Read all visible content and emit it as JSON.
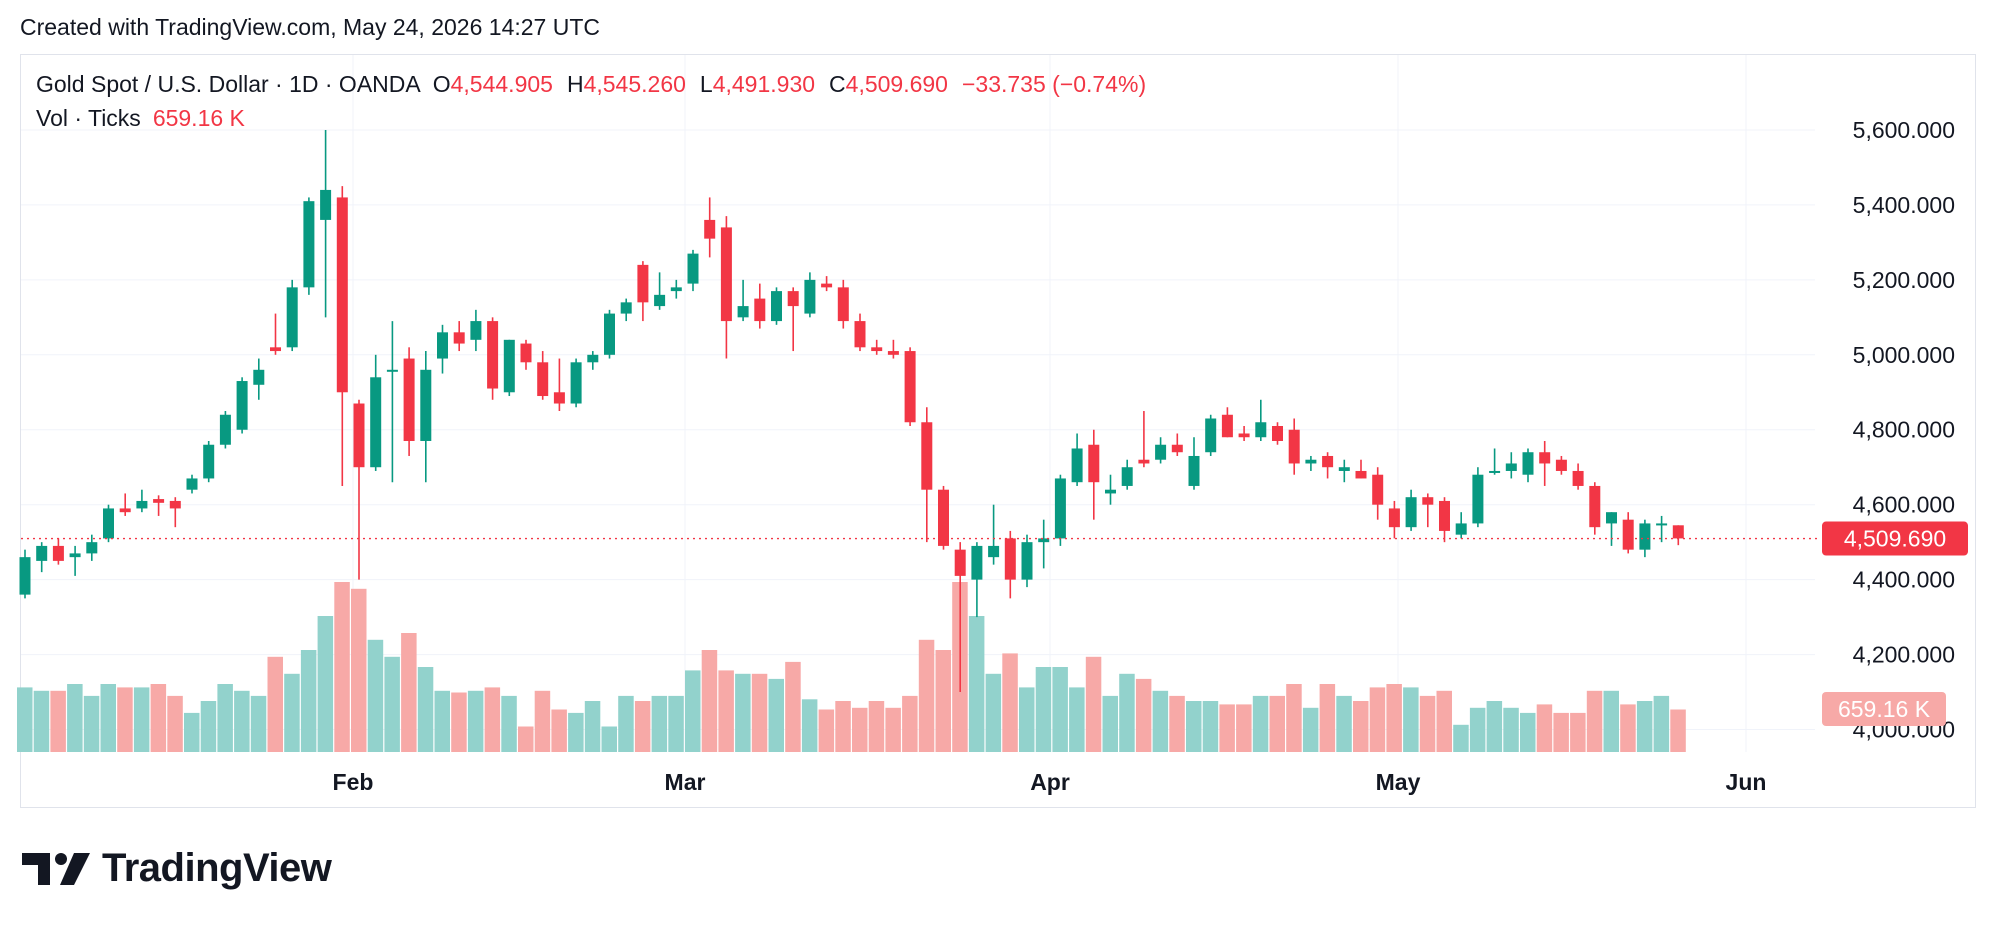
{
  "header": {
    "created": "Created with TradingView.com, May 24, 2026 14:27 UTC"
  },
  "legend": {
    "symbol": "Gold Spot / U.S. Dollar · 1D · OANDA",
    "o_label": "O",
    "o": "4,544.905",
    "h_label": "H",
    "h": "4,545.260",
    "l_label": "L",
    "l": "4,491.930",
    "c_label": "C",
    "c": "4,509.690",
    "change": "−33.735 (−0.74%)"
  },
  "volume": {
    "label": "Vol · Ticks",
    "value": "659.16 K"
  },
  "footer": {
    "brand": "TradingView"
  },
  "colors": {
    "up": "#089981",
    "down": "#f23645",
    "vol_up": "#92d2cc",
    "vol_down": "#f7a9a7",
    "grid": "#f0f3fa",
    "text": "#131722"
  },
  "chart_data": {
    "type": "candlestick",
    "title": "Gold Spot / U.S. Dollar · 1D · OANDA",
    "x_ticks": [
      "Feb",
      "Mar",
      "Apr",
      "May",
      "Jun"
    ],
    "y_ticks": [
      "5,600.000",
      "5,400.000",
      "5,200.000",
      "5,000.000",
      "4,800.000",
      "4,600.000",
      "4,400.000",
      "4,200.000",
      "4,000.000"
    ],
    "y_tick_values": [
      5600,
      5400,
      5200,
      5000,
      4800,
      4600,
      4400,
      4200,
      4000
    ],
    "ylim": [
      3940,
      5680
    ],
    "last_price": 4509.69,
    "last_price_label": "4,509.690",
    "last_volume_label": "659.16 K",
    "grid": true,
    "candles": [
      {
        "o": 4360,
        "h": 4480,
        "l": 4350,
        "c": 4460,
        "v": 0.38
      },
      {
        "o": 4450,
        "h": 4500,
        "l": 4420,
        "c": 4490,
        "v": 0.36
      },
      {
        "o": 4490,
        "h": 4510,
        "l": 4440,
        "c": 4450,
        "v": 0.36
      },
      {
        "o": 4460,
        "h": 4490,
        "l": 4410,
        "c": 4470,
        "v": 0.4
      },
      {
        "o": 4470,
        "h": 4520,
        "l": 4450,
        "c": 4500,
        "v": 0.33
      },
      {
        "o": 4510,
        "h": 4600,
        "l": 4500,
        "c": 4590,
        "v": 0.4
      },
      {
        "o": 4590,
        "h": 4630,
        "l": 4570,
        "c": 4580,
        "v": 0.38
      },
      {
        "o": 4590,
        "h": 4640,
        "l": 4580,
        "c": 4610,
        "v": 0.38
      },
      {
        "o": 4615,
        "h": 4625,
        "l": 4570,
        "c": 4605,
        "v": 0.4
      },
      {
        "o": 4610,
        "h": 4620,
        "l": 4540,
        "c": 4590,
        "v": 0.33
      },
      {
        "o": 4640,
        "h": 4680,
        "l": 4630,
        "c": 4670,
        "v": 0.23
      },
      {
        "o": 4670,
        "h": 4770,
        "l": 4660,
        "c": 4760,
        "v": 0.3
      },
      {
        "o": 4760,
        "h": 4850,
        "l": 4750,
        "c": 4840,
        "v": 0.4
      },
      {
        "o": 4800,
        "h": 4940,
        "l": 4790,
        "c": 4930,
        "v": 0.36
      },
      {
        "o": 4920,
        "h": 4990,
        "l": 4880,
        "c": 4960,
        "v": 0.33
      },
      {
        "o": 5020,
        "h": 5110,
        "l": 5000,
        "c": 5010,
        "v": 0.56
      },
      {
        "o": 5020,
        "h": 5200,
        "l": 5010,
        "c": 5180,
        "v": 0.46
      },
      {
        "o": 5180,
        "h": 5420,
        "l": 5160,
        "c": 5410,
        "v": 0.6
      },
      {
        "o": 5360,
        "h": 5600,
        "l": 5100,
        "c": 5440,
        "v": 0.8
      },
      {
        "o": 5420,
        "h": 5450,
        "l": 4650,
        "c": 4900,
        "v": 1.0
      },
      {
        "o": 4870,
        "h": 4880,
        "l": 4400,
        "c": 4700,
        "v": 0.96
      },
      {
        "o": 4700,
        "h": 5000,
        "l": 4690,
        "c": 4940,
        "v": 0.66
      },
      {
        "o": 4960,
        "h": 5090,
        "l": 4660,
        "c": 4960,
        "v": 0.56
      },
      {
        "o": 4990,
        "h": 5020,
        "l": 4730,
        "c": 4770,
        "v": 0.7
      },
      {
        "o": 4770,
        "h": 5010,
        "l": 4660,
        "c": 4960,
        "v": 0.5
      },
      {
        "o": 4990,
        "h": 5080,
        "l": 4950,
        "c": 5060,
        "v": 0.36
      },
      {
        "o": 5060,
        "h": 5090,
        "l": 5010,
        "c": 5030,
        "v": 0.35
      },
      {
        "o": 5040,
        "h": 5120,
        "l": 5010,
        "c": 5090,
        "v": 0.36
      },
      {
        "o": 5090,
        "h": 5100,
        "l": 4880,
        "c": 4910,
        "v": 0.38
      },
      {
        "o": 4900,
        "h": 5040,
        "l": 4890,
        "c": 5040,
        "v": 0.33
      },
      {
        "o": 5030,
        "h": 5040,
        "l": 4960,
        "c": 4980,
        "v": 0.15
      },
      {
        "o": 4980,
        "h": 5010,
        "l": 4880,
        "c": 4890,
        "v": 0.36
      },
      {
        "o": 4900,
        "h": 4990,
        "l": 4850,
        "c": 4870,
        "v": 0.25
      },
      {
        "o": 4870,
        "h": 4990,
        "l": 4860,
        "c": 4980,
        "v": 0.23
      },
      {
        "o": 4980,
        "h": 5010,
        "l": 4960,
        "c": 5000,
        "v": 0.3
      },
      {
        "o": 5000,
        "h": 5120,
        "l": 4990,
        "c": 5110,
        "v": 0.15
      },
      {
        "o": 5110,
        "h": 5150,
        "l": 5090,
        "c": 5140,
        "v": 0.33
      },
      {
        "o": 5240,
        "h": 5250,
        "l": 5090,
        "c": 5140,
        "v": 0.3
      },
      {
        "o": 5130,
        "h": 5220,
        "l": 5120,
        "c": 5160,
        "v": 0.33
      },
      {
        "o": 5170,
        "h": 5200,
        "l": 5150,
        "c": 5180,
        "v": 0.33
      },
      {
        "o": 5190,
        "h": 5280,
        "l": 5170,
        "c": 5270,
        "v": 0.48
      },
      {
        "o": 5360,
        "h": 5420,
        "l": 5260,
        "c": 5310,
        "v": 0.6
      },
      {
        "o": 5340,
        "h": 5370,
        "l": 4990,
        "c": 5090,
        "v": 0.48
      },
      {
        "o": 5100,
        "h": 5200,
        "l": 5090,
        "c": 5130,
        "v": 0.46
      },
      {
        "o": 5150,
        "h": 5190,
        "l": 5070,
        "c": 5090,
        "v": 0.46
      },
      {
        "o": 5090,
        "h": 5180,
        "l": 5080,
        "c": 5170,
        "v": 0.43
      },
      {
        "o": 5170,
        "h": 5180,
        "l": 5010,
        "c": 5130,
        "v": 0.53
      },
      {
        "o": 5110,
        "h": 5220,
        "l": 5100,
        "c": 5200,
        "v": 0.31
      },
      {
        "o": 5190,
        "h": 5210,
        "l": 5170,
        "c": 5180,
        "v": 0.25
      },
      {
        "o": 5180,
        "h": 5200,
        "l": 5070,
        "c": 5090,
        "v": 0.3
      },
      {
        "o": 5090,
        "h": 5110,
        "l": 5010,
        "c": 5020,
        "v": 0.26
      },
      {
        "o": 5020,
        "h": 5040,
        "l": 5000,
        "c": 5010,
        "v": 0.3
      },
      {
        "o": 5010,
        "h": 5040,
        "l": 4990,
        "c": 5000,
        "v": 0.26
      },
      {
        "o": 5010,
        "h": 5020,
        "l": 4810,
        "c": 4820,
        "v": 0.33
      },
      {
        "o": 4820,
        "h": 4860,
        "l": 4500,
        "c": 4640,
        "v": 0.66
      },
      {
        "o": 4640,
        "h": 4650,
        "l": 4480,
        "c": 4490,
        "v": 0.6
      },
      {
        "o": 4480,
        "h": 4500,
        "l": 4100,
        "c": 4410,
        "v": 1.0
      },
      {
        "o": 4400,
        "h": 4500,
        "l": 4300,
        "c": 4490,
        "v": 0.8
      },
      {
        "o": 4460,
        "h": 4600,
        "l": 4440,
        "c": 4490,
        "v": 0.46
      },
      {
        "o": 4510,
        "h": 4530,
        "l": 4350,
        "c": 4400,
        "v": 0.58
      },
      {
        "o": 4400,
        "h": 4520,
        "l": 4380,
        "c": 4500,
        "v": 0.38
      },
      {
        "o": 4500,
        "h": 4560,
        "l": 4430,
        "c": 4510,
        "v": 0.5
      },
      {
        "o": 4510,
        "h": 4680,
        "l": 4490,
        "c": 4670,
        "v": 0.5
      },
      {
        "o": 4660,
        "h": 4790,
        "l": 4650,
        "c": 4750,
        "v": 0.38
      },
      {
        "o": 4760,
        "h": 4800,
        "l": 4560,
        "c": 4660,
        "v": 0.56
      },
      {
        "o": 4630,
        "h": 4680,
        "l": 4600,
        "c": 4640,
        "v": 0.33
      },
      {
        "o": 4650,
        "h": 4720,
        "l": 4640,
        "c": 4700,
        "v": 0.46
      },
      {
        "o": 4720,
        "h": 4850,
        "l": 4700,
        "c": 4710,
        "v": 0.43
      },
      {
        "o": 4720,
        "h": 4780,
        "l": 4710,
        "c": 4760,
        "v": 0.36
      },
      {
        "o": 4760,
        "h": 4790,
        "l": 4730,
        "c": 4740,
        "v": 0.33
      },
      {
        "o": 4650,
        "h": 4780,
        "l": 4640,
        "c": 4730,
        "v": 0.3
      },
      {
        "o": 4740,
        "h": 4840,
        "l": 4730,
        "c": 4830,
        "v": 0.3
      },
      {
        "o": 4840,
        "h": 4860,
        "l": 4780,
        "c": 4780,
        "v": 0.28
      },
      {
        "o": 4790,
        "h": 4810,
        "l": 4770,
        "c": 4780,
        "v": 0.28
      },
      {
        "o": 4780,
        "h": 4880,
        "l": 4770,
        "c": 4820,
        "v": 0.33
      },
      {
        "o": 4810,
        "h": 4820,
        "l": 4760,
        "c": 4770,
        "v": 0.33
      },
      {
        "o": 4800,
        "h": 4830,
        "l": 4680,
        "c": 4710,
        "v": 0.4
      },
      {
        "o": 4710,
        "h": 4730,
        "l": 4690,
        "c": 4720,
        "v": 0.26
      },
      {
        "o": 4730,
        "h": 4740,
        "l": 4670,
        "c": 4700,
        "v": 0.4
      },
      {
        "o": 4690,
        "h": 4720,
        "l": 4660,
        "c": 4700,
        "v": 0.33
      },
      {
        "o": 4690,
        "h": 4720,
        "l": 4670,
        "c": 4670,
        "v": 0.3
      },
      {
        "o": 4680,
        "h": 4700,
        "l": 4560,
        "c": 4600,
        "v": 0.38
      },
      {
        "o": 4590,
        "h": 4610,
        "l": 4510,
        "c": 4540,
        "v": 0.4
      },
      {
        "o": 4540,
        "h": 4640,
        "l": 4530,
        "c": 4620,
        "v": 0.38
      },
      {
        "o": 4620,
        "h": 4630,
        "l": 4540,
        "c": 4600,
        "v": 0.33
      },
      {
        "o": 4610,
        "h": 4620,
        "l": 4500,
        "c": 4530,
        "v": 0.36
      },
      {
        "o": 4520,
        "h": 4580,
        "l": 4510,
        "c": 4550,
        "v": 0.16
      },
      {
        "o": 4550,
        "h": 4700,
        "l": 4540,
        "c": 4680,
        "v": 0.26
      },
      {
        "o": 4690,
        "h": 4750,
        "l": 4680,
        "c": 4690,
        "v": 0.3
      },
      {
        "o": 4690,
        "h": 4740,
        "l": 4670,
        "c": 4710,
        "v": 0.26
      },
      {
        "o": 4680,
        "h": 4750,
        "l": 4660,
        "c": 4740,
        "v": 0.23
      },
      {
        "o": 4740,
        "h": 4770,
        "l": 4650,
        "c": 4710,
        "v": 0.28
      },
      {
        "o": 4720,
        "h": 4730,
        "l": 4680,
        "c": 4690,
        "v": 0.23
      },
      {
        "o": 4690,
        "h": 4710,
        "l": 4640,
        "c": 4650,
        "v": 0.23
      },
      {
        "o": 4650,
        "h": 4660,
        "l": 4520,
        "c": 4540,
        "v": 0.36
      },
      {
        "o": 4550,
        "h": 4580,
        "l": 4490,
        "c": 4580,
        "v": 0.36
      },
      {
        "o": 4560,
        "h": 4580,
        "l": 4470,
        "c": 4480,
        "v": 0.28
      },
      {
        "o": 4480,
        "h": 4560,
        "l": 4460,
        "c": 4550,
        "v": 0.3
      },
      {
        "o": 4550,
        "h": 4570,
        "l": 4500,
        "c": 4550,
        "v": 0.33
      },
      {
        "o": 4545,
        "h": 4545,
        "l": 4492,
        "c": 4510,
        "v": 0.25
      }
    ]
  }
}
